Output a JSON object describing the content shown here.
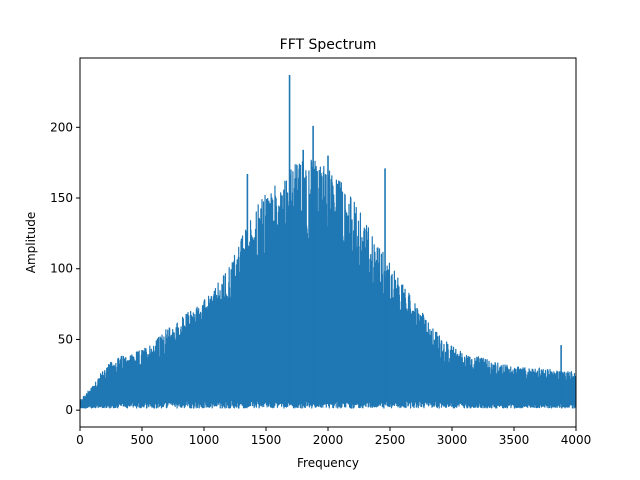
{
  "chart_data": {
    "type": "line",
    "title": "FFT Spectrum",
    "xlabel": "Frequency",
    "ylabel": "Amplitude",
    "xlim": [
      0,
      4000
    ],
    "ylim": [
      -11.9,
      249
    ],
    "xticks": [
      0,
      500,
      1000,
      1500,
      2000,
      2500,
      3000,
      3500,
      4000
    ],
    "yticks": [
      0,
      50,
      100,
      150,
      200
    ],
    "grid": false,
    "legend": null,
    "series": [
      {
        "color": "#1f77b4",
        "envelope_x": [
          0,
          50,
          100,
          150,
          200,
          250,
          300,
          350,
          400,
          450,
          500,
          550,
          600,
          650,
          700,
          750,
          800,
          850,
          900,
          950,
          1000,
          1050,
          1100,
          1150,
          1200,
          1250,
          1300,
          1350,
          1400,
          1450,
          1500,
          1550,
          1600,
          1650,
          1700,
          1750,
          1800,
          1850,
          1900,
          1950,
          2000,
          2050,
          2100,
          2150,
          2200,
          2250,
          2300,
          2350,
          2400,
          2450,
          2500,
          2550,
          2600,
          2650,
          2700,
          2750,
          2800,
          2850,
          2900,
          2950,
          3000,
          3050,
          3100,
          3150,
          3200,
          3250,
          3300,
          3350,
          3400,
          3450,
          3500,
          3550,
          3600,
          3650,
          3700,
          3750,
          3800,
          3850,
          3900,
          3950,
          4000
        ],
        "envelope_y": [
          7,
          12,
          18,
          24,
          30,
          34,
          37,
          39,
          40,
          41,
          43,
          46,
          49,
          53,
          58,
          60,
          64,
          68,
          72,
          75,
          78,
          83,
          88,
          95,
          103,
          112,
          122,
          132,
          141,
          148,
          153,
          158,
          163,
          168,
          172,
          175,
          178,
          178,
          177,
          175,
          172,
          168,
          163,
          157,
          150,
          142,
          135,
          127,
          120,
          112,
          105,
          97,
          90,
          83,
          76,
          70,
          64,
          58,
          53,
          49,
          46,
          43,
          41,
          39,
          38,
          37,
          35,
          34,
          33,
          32,
          31,
          31,
          30,
          30,
          30,
          29,
          29,
          28,
          28,
          28,
          27
        ],
        "floor_y": 1.5,
        "peaks": [
          {
            "x": 1690,
            "y": 237
          },
          {
            "x": 1880,
            "y": 201
          },
          {
            "x": 1350,
            "y": 167
          },
          {
            "x": 2460,
            "y": 171
          },
          {
            "x": 3880,
            "y": 46
          },
          {
            "x": 2000,
            "y": 180
          },
          {
            "x": 1800,
            "y": 184
          }
        ]
      }
    ]
  }
}
